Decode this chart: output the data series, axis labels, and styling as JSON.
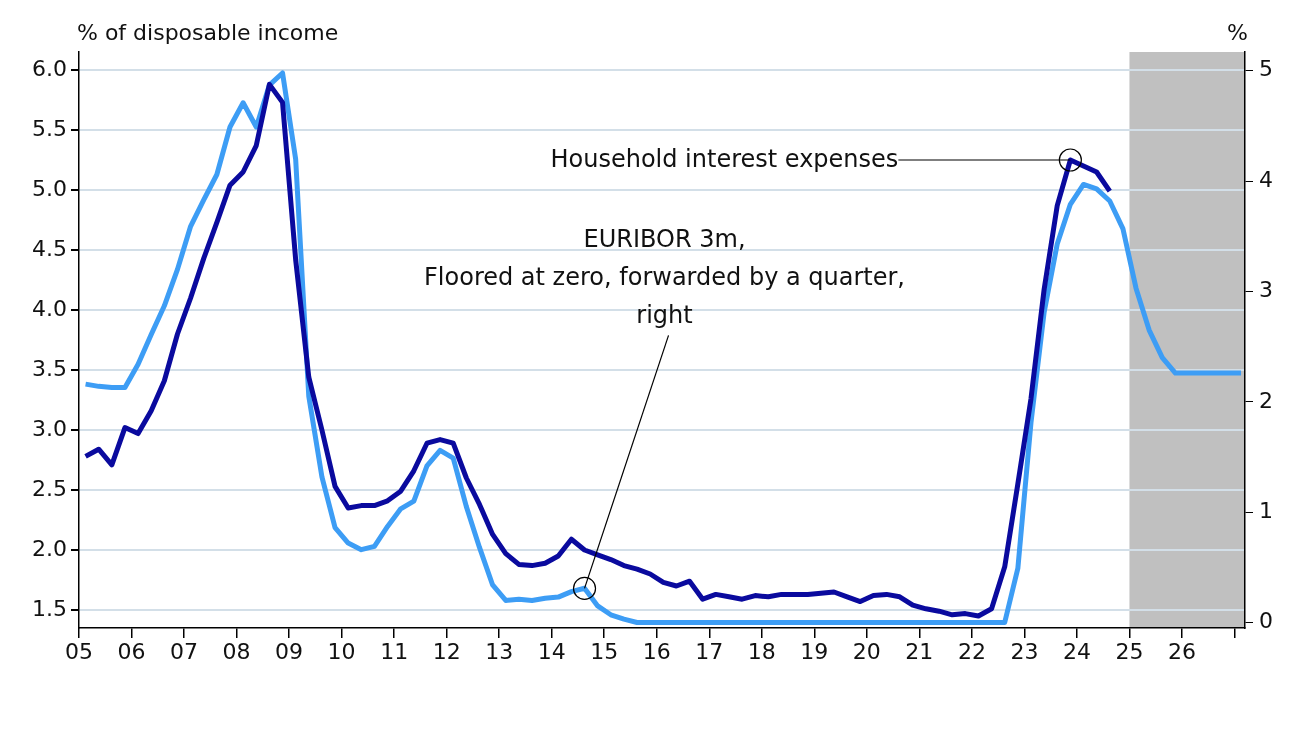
{
  "chart_data": {
    "type": "line",
    "ylabel": "% of disposable income",
    "y2label": "%",
    "marker": "none",
    "grid": "y",
    "x": [
      5.125,
      5.375,
      5.625,
      5.875,
      6.125,
      6.375,
      6.625,
      6.875,
      7.125,
      7.375,
      7.625,
      7.875,
      8.125,
      8.375,
      8.625,
      8.875,
      9.125,
      9.375,
      9.625,
      9.875,
      10.125,
      10.375,
      10.625,
      10.875,
      11.125,
      11.375,
      11.625,
      11.875,
      12.125,
      12.375,
      12.625,
      12.875,
      13.125,
      13.375,
      13.625,
      13.875,
      14.125,
      14.375,
      14.625,
      14.875,
      15.125,
      15.375,
      15.625,
      15.875,
      16.125,
      16.375,
      16.625,
      16.875,
      17.125,
      17.375,
      17.625,
      17.875,
      18.125,
      18.375,
      18.625,
      18.875,
      19.125,
      19.375,
      19.625,
      19.875,
      20.125,
      20.375,
      20.625,
      20.875,
      21.125,
      21.375,
      21.625,
      21.875,
      22.125,
      22.375,
      22.625,
      22.875,
      23.125,
      23.375,
      23.625,
      23.875,
      24.125,
      24.375,
      24.625,
      24.875,
      25.125,
      25.375,
      25.625,
      25.875,
      26.125,
      26.375,
      26.625,
      26.875,
      27.125
    ],
    "series": [
      {
        "color": "#0a0a9e",
        "values": [
          2.78,
          2.84,
          2.71,
          3.02,
          2.97,
          3.16,
          3.41,
          3.8,
          4.1,
          4.43,
          4.73,
          5.04,
          5.15,
          5.37,
          5.88,
          5.73,
          4.42,
          3.44,
          3.0,
          2.53,
          2.35,
          2.37,
          2.37,
          2.41,
          2.49,
          2.66,
          2.89,
          2.92,
          2.89,
          2.6,
          2.38,
          2.13,
          1.97,
          1.88,
          1.87,
          1.89,
          1.95,
          2.09,
          2.0,
          1.96,
          1.92,
          1.87,
          1.84,
          1.8,
          1.73,
          1.7,
          1.74,
          1.59,
          1.63,
          1.61,
          1.59,
          1.62,
          1.61,
          1.63,
          1.63,
          1.63,
          1.64,
          1.65,
          1.61,
          1.57,
          1.62,
          1.63,
          1.61,
          1.54,
          1.51,
          1.49,
          1.46,
          1.47,
          1.45,
          1.51,
          1.86,
          2.55,
          3.26,
          4.17,
          4.87,
          5.25,
          5.2,
          5.15,
          4.99,
          null,
          null,
          null,
          null,
          null,
          null,
          null,
          null,
          null,
          null
        ]
      },
      {
        "color": "#3d9df5",
        "axis": "y2",
        "values": [
          2.16,
          2.14,
          2.13,
          2.13,
          2.34,
          2.61,
          2.87,
          3.2,
          3.59,
          3.83,
          4.06,
          4.49,
          4.71,
          4.49,
          4.87,
          4.98,
          4.2,
          2.05,
          1.32,
          0.86,
          0.72,
          0.66,
          0.69,
          0.87,
          1.03,
          1.1,
          1.42,
          1.56,
          1.49,
          1.05,
          0.68,
          0.34,
          0.2,
          0.21,
          0.2,
          0.22,
          0.23,
          0.28,
          0.31,
          0.15,
          0.07,
          0.03,
          0,
          0,
          0,
          0,
          0,
          0,
          0,
          0,
          0,
          0,
          0,
          0,
          0,
          0,
          0,
          0,
          0,
          0,
          0,
          0,
          0,
          0,
          0,
          0,
          0,
          0,
          0,
          0,
          0,
          0.49,
          1.81,
          2.81,
          3.43,
          3.79,
          3.97,
          3.93,
          3.82,
          3.57,
          3.03,
          2.65,
          2.4,
          2.26,
          2.26,
          2.26,
          2.26,
          2.26,
          2.26
        ]
      }
    ],
    "xlim": [
      5,
      27.2
    ],
    "xticks": [
      {
        "value": 5,
        "label": "05"
      },
      {
        "value": 6,
        "label": "06"
      },
      {
        "value": 7,
        "label": "07"
      },
      {
        "value": 8,
        "label": "08"
      },
      {
        "value": 9,
        "label": "09"
      },
      10,
      11,
      12,
      13,
      14,
      15,
      16,
      17,
      18,
      19,
      20,
      21,
      22,
      23,
      24,
      25,
      26,
      {
        "value": 27,
        "label": null
      }
    ],
    "ylim": [
      1.35,
      6.15
    ],
    "yticks": [
      1.5,
      {
        "value": 2,
        "label": "2.0"
      },
      2.5,
      {
        "value": 3,
        "label": "3.0"
      },
      3.5,
      {
        "value": 4,
        "label": "4.0"
      },
      4.5,
      {
        "value": 5,
        "label": "5.0"
      },
      5.5,
      {
        "value": 6,
        "label": "6.0"
      }
    ],
    "y2lim": [
      -0.05,
      5.17
    ],
    "y2ticks": [
      0,
      1,
      2,
      3,
      4,
      5
    ],
    "bands": [
      {
        "axis": "x",
        "from": 25,
        "to": 27.2,
        "color": "#c0c0c0"
      }
    ],
    "annotations": [
      {
        "text": "Household interest expenses",
        "x": 23.875,
        "y": 5.25
      },
      {
        "text": "EURIBOR 3m,\nFloored at zero, forwarded by a quarter,\nright",
        "x": 14.625,
        "y": 1.68
      }
    ]
  }
}
